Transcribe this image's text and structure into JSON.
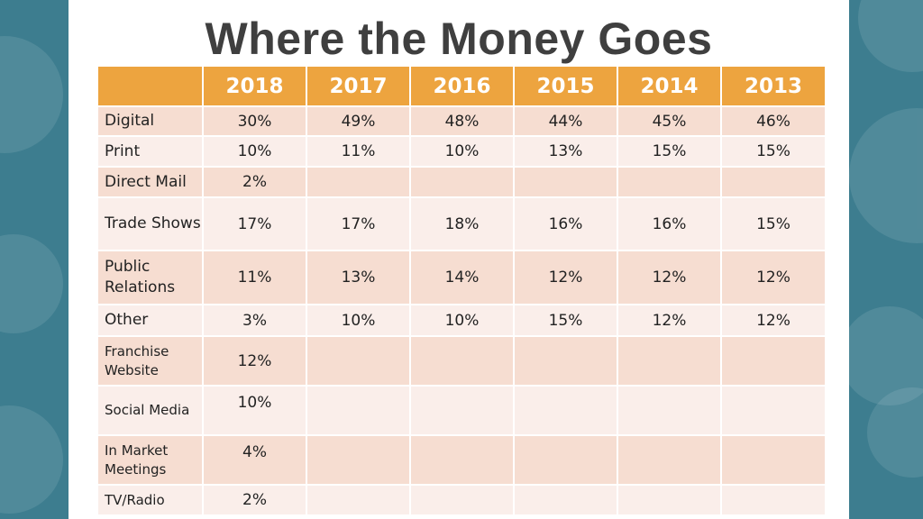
{
  "title": "Where the Money Goes",
  "table": {
    "headers": [
      "",
      "2018",
      "2017",
      "2016",
      "2015",
      "2014",
      "2013"
    ],
    "rows": [
      {
        "label": "Digital",
        "values": [
          "30%",
          "49%",
          "48%",
          "44%",
          "45%",
          "46%"
        ]
      },
      {
        "label": "Print",
        "values": [
          "10%",
          "11%",
          "10%",
          "13%",
          "15%",
          "15%"
        ]
      },
      {
        "label": "Direct Mail",
        "values": [
          "2%",
          "",
          "",
          "",
          "",
          ""
        ]
      },
      {
        "label": "Trade Shows",
        "values": [
          "17%",
          "17%",
          "18%",
          "16%",
          "16%",
          "15%"
        ]
      },
      {
        "label": "Public Relations",
        "values": [
          "11%",
          "13%",
          "14%",
          "12%",
          "12%",
          "12%"
        ]
      },
      {
        "label": "Other",
        "values": [
          "3%",
          "10%",
          "10%",
          "15%",
          "12%",
          "12%"
        ]
      },
      {
        "label": "Franchise Website",
        "values": [
          "12%",
          "",
          "",
          "",
          "",
          ""
        ]
      },
      {
        "label": "Social Media",
        "values": [
          "10%",
          "",
          "",
          "",
          "",
          ""
        ]
      },
      {
        "label": "In Market Meetings",
        "values": [
          "4%",
          "",
          "",
          "",
          "",
          ""
        ]
      },
      {
        "label": "TV/Radio",
        "values": [
          "2%",
          "",
          "",
          "",
          "",
          ""
        ]
      }
    ]
  },
  "colors": {
    "header_bg": "#eda43f",
    "row_dark": "#f6ddd1",
    "row_light": "#faeeea",
    "side_bg": "#3d7d8f"
  }
}
